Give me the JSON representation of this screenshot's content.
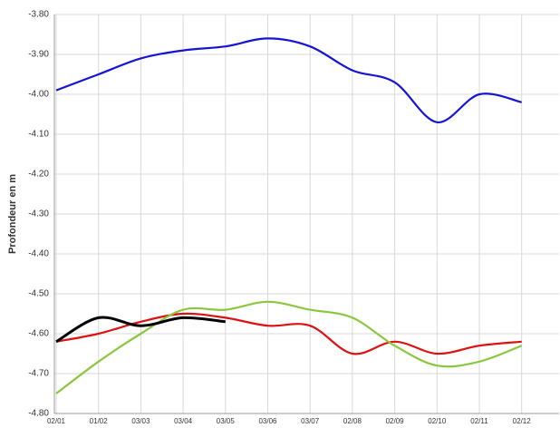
{
  "chart_data": {
    "type": "line",
    "y_label": "Profondeur en m",
    "categories": [
      "02/01",
      "01/02",
      "03/03",
      "03/04",
      "03/05",
      "03/06",
      "03/07",
      "02/08",
      "02/09",
      "02/10",
      "02/11",
      "02/12"
    ],
    "series": [
      {
        "color": "#1414d6",
        "values": [
          -3.99,
          -3.95,
          -3.91,
          -3.89,
          -3.88,
          -3.86,
          -3.88,
          -3.94,
          -3.97,
          -4.07,
          -4.0,
          -4.02
        ]
      },
      {
        "color": "#dd1111",
        "values": [
          -4.62,
          -4.6,
          -4.57,
          -4.55,
          -4.56,
          -4.58,
          -4.58,
          -4.65,
          -4.62,
          -4.65,
          -4.63,
          -4.62
        ]
      },
      {
        "color": "#8cc63e",
        "values": [
          -4.75,
          -4.67,
          -4.6,
          -4.54,
          -4.54,
          -4.52,
          -4.54,
          -4.56,
          -4.63,
          -4.68,
          -4.67,
          -4.63
        ]
      },
      {
        "color": "#000000",
        "values": [
          -4.62,
          -4.56,
          -4.58,
          -4.56,
          -4.57,
          null,
          null,
          null,
          null,
          null,
          null,
          null
        ]
      }
    ],
    "ylim": [
      -4.8,
      -3.8
    ],
    "yticks": [
      {
        "value": -3.8,
        "label": "-3.80"
      },
      {
        "value": -3.9,
        "label": "-3.90"
      },
      {
        "value": -4.0,
        "label": "-4.00"
      },
      {
        "value": -4.1,
        "label": "-4.10"
      },
      {
        "value": -4.2,
        "label": "-4.20"
      },
      {
        "value": -4.3,
        "label": "-4.30"
      },
      {
        "value": -4.4,
        "label": "-4.40"
      },
      {
        "value": -4.5,
        "label": "-4.50"
      },
      {
        "value": -4.6,
        "label": "-4.60"
      },
      {
        "value": -4.7,
        "label": "-4.70"
      },
      {
        "value": -4.8,
        "label": "-4.80"
      }
    ],
    "grid": true
  }
}
